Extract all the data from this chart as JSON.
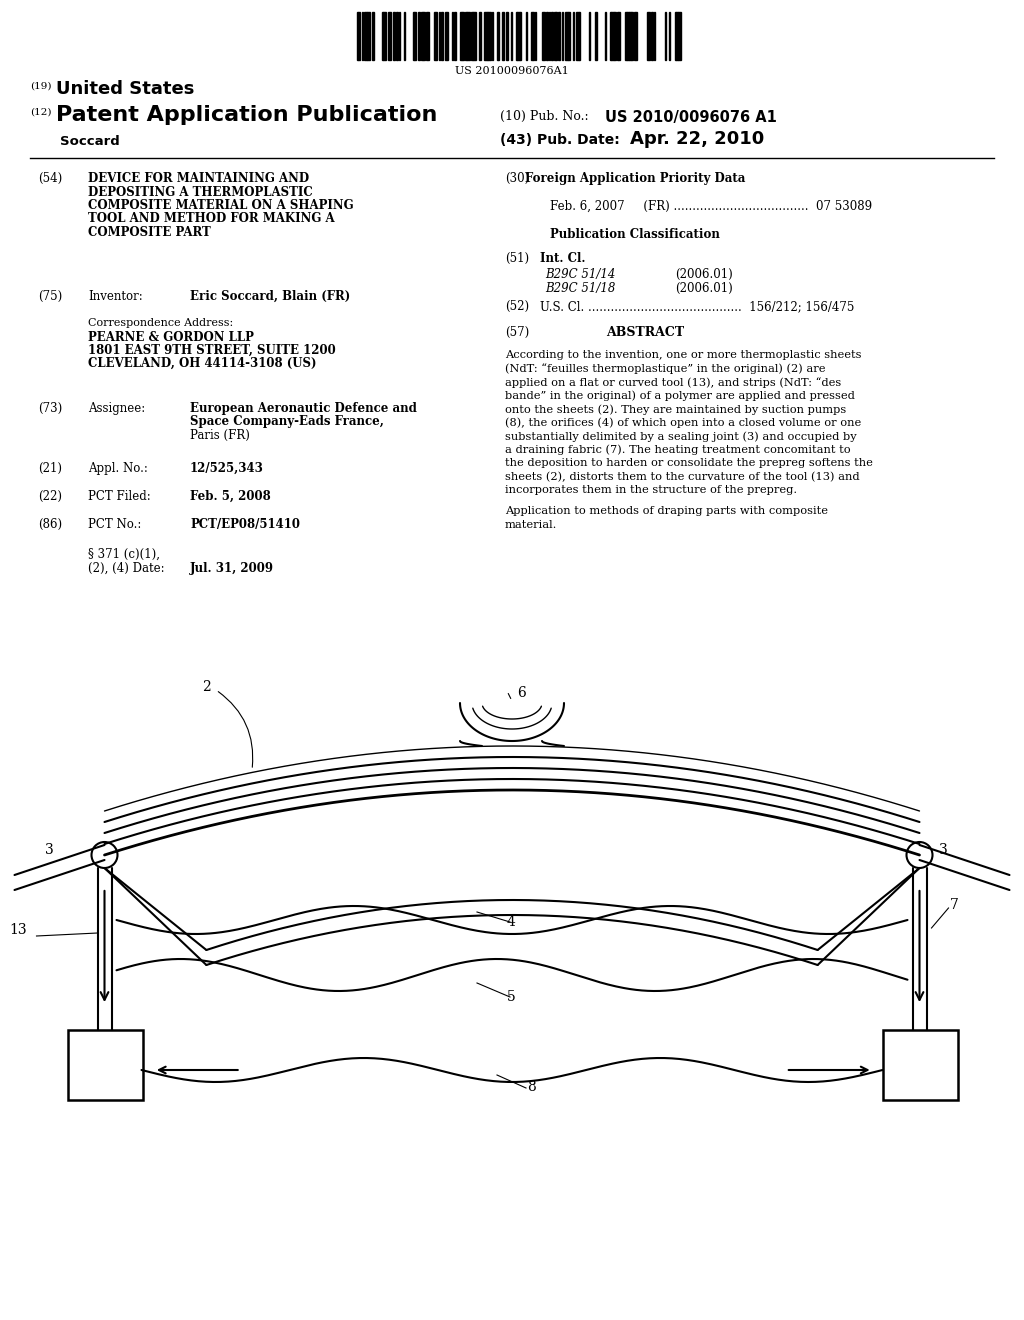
{
  "bg_color": "#ffffff",
  "barcode_text": "US 20100096076A1",
  "header_19_text": "United States",
  "header_12_text": "Patent Application Publication",
  "header_10_label": "(10) Pub. No.:",
  "header_10_value": "US 2010/0096076 A1",
  "header_43_label": "(43) Pub. Date:",
  "header_43_value": "Apr. 22, 2010",
  "header_name": "Soccard",
  "field_54_title_lines": [
    "DEVICE FOR MAINTAINING AND",
    "DEPOSITING A THERMOPLASTIC",
    "COMPOSITE MATERIAL ON A SHAPING",
    "TOOL AND METHOD FOR MAKING A",
    "COMPOSITE PART"
  ],
  "field_75_label": "Inventor:",
  "field_75_value": "Eric Soccard, Blain (FR)",
  "corr_label": "Correspondence Address:",
  "corr_line1": "PEARNE & GORDON LLP",
  "corr_line2": "1801 EAST 9TH STREET, SUITE 1200",
  "corr_line3": "CLEVELAND, OH 44114-3108 (US)",
  "field_73_label": "Assignee:",
  "field_73_value_lines": [
    "European Aeronautic Defence and",
    "Space Company-Eads France,",
    "Paris (FR)"
  ],
  "field_21_label": "Appl. No.:",
  "field_21_value": "12/525,343",
  "field_22_label": "PCT Filed:",
  "field_22_value": "Feb. 5, 2008",
  "field_86_label": "PCT No.:",
  "field_86_value": "PCT/EP08/51410",
  "field_371_line1": "§ 371 (c)(1),",
  "field_371_line2": "(2), (4) Date:",
  "field_371_value": "Jul. 31, 2009",
  "field_30_title": "Foreign Application Priority Data",
  "field_30_line": "Feb. 6, 2007     (FR) ....................................  07 53089",
  "pub_class_title": "Publication Classification",
  "field_51_label": "Int. Cl.",
  "field_51_line1": "B29C 51/14",
  "field_51_line1_right": "(2006.01)",
  "field_51_line2": "B29C 51/18",
  "field_51_line2_right": "(2006.01)",
  "field_52_line": "U.S. Cl. .........................................  156/212; 156/475",
  "field_57_title": "ABSTRACT",
  "abstract_lines": [
    "According to the invention, one or more thermoplastic sheets",
    "(NdT: “feuilles thermoplastique” in the original) (2) are",
    "applied on a flat or curved tool (13), and strips (NdT: “des",
    "bande” in the original) of a polymer are applied and pressed",
    "onto the sheets (2). They are maintained by suction pumps",
    "(8), the orifices (4) of which open into a closed volume or one",
    "substantially delimited by a sealing joint (3) and occupied by",
    "a draining fabric (7). The heating treatment concomitant to",
    "the deposition to harden or consolidate the prepreg softens the",
    "sheets (2), distorts them to the curvature of the tool (13) and",
    "incorporates them in the structure of the prepreg."
  ],
  "abstract_app_lines": [
    "Application to methods of draping parts with composite",
    "material."
  ]
}
